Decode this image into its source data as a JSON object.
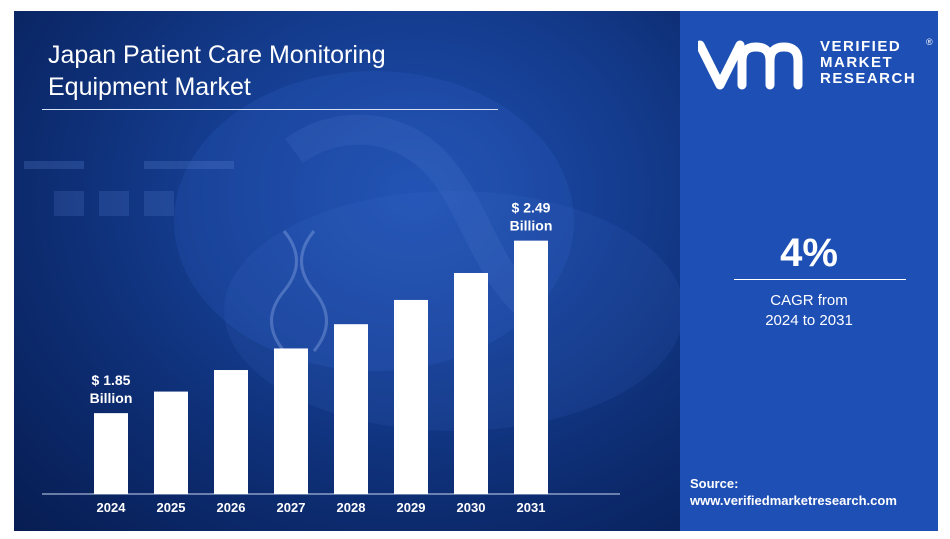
{
  "title_line1": "Japan Patient Care Monitoring",
  "title_line2": "Equipment Market",
  "brand": {
    "line1": "VERIFIED",
    "line2": "MARKET",
    "line3": "RESEARCH",
    "reg_mark": "®",
    "logo_icon": "vmr-logo-icon"
  },
  "cagr": {
    "value": "4%",
    "label_line1": "CAGR from",
    "label_line2": "2024 to 2031"
  },
  "source": {
    "label": "Source:",
    "url": "www.verifiedmarketresearch.com"
  },
  "colors": {
    "bar": "#ffffff",
    "panel": "#1d4fb5",
    "background": "#0c2a6d"
  },
  "chart_data": {
    "type": "bar",
    "categories": [
      "2024",
      "2025",
      "2026",
      "2027",
      "2028",
      "2029",
      "2030",
      "2031"
    ],
    "values": [
      1.85,
      1.93,
      2.01,
      2.09,
      2.18,
      2.27,
      2.37,
      2.49
    ],
    "ylim": [
      1.55,
      2.6
    ],
    "grid": false,
    "annotations": [
      {
        "category": "2024",
        "line1": "$ 1.85",
        "line2": "Billion"
      },
      {
        "category": "2031",
        "line1": "$ 2.49",
        "line2": "Billion"
      }
    ]
  }
}
